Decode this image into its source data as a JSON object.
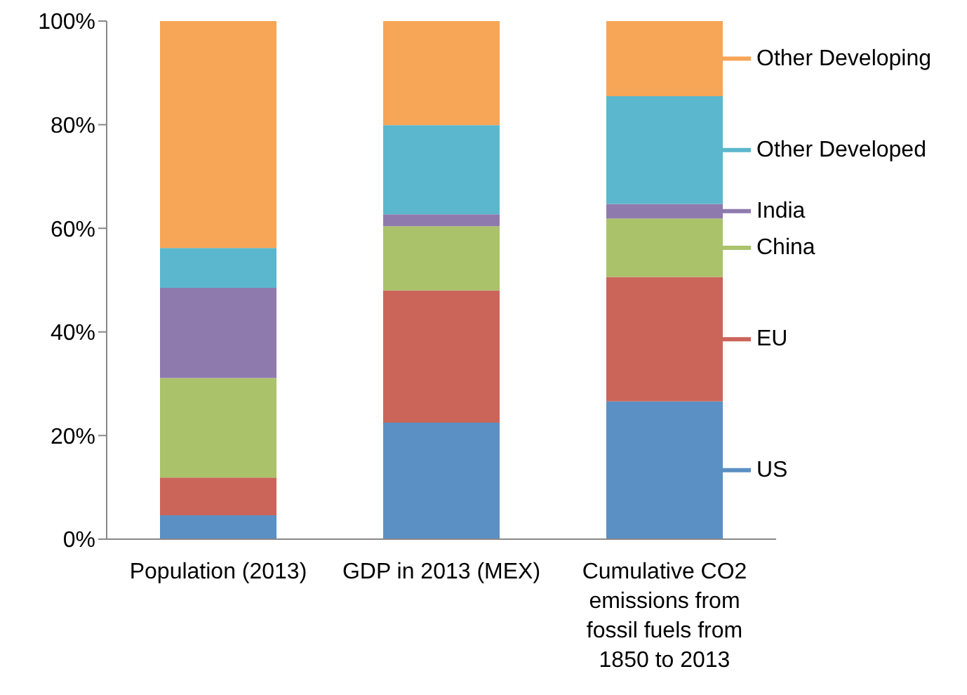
{
  "chart_data": {
    "type": "bar",
    "stacked": true,
    "categories": [
      "Population (2013)",
      "GDP in 2013 (MEX)",
      "Cumulative CO2 emissions from fossil fuels from 1850 to 2013"
    ],
    "series": [
      {
        "name": "US",
        "color": "#5b90c4",
        "values": [
          4.6,
          22.5,
          26.6
        ]
      },
      {
        "name": "EU",
        "color": "#cb655a",
        "values": [
          7.3,
          25.5,
          24.0
        ]
      },
      {
        "name": "China",
        "color": "#aac26a",
        "values": [
          19.2,
          12.4,
          11.3
        ]
      },
      {
        "name": "India",
        "color": "#8f7aae",
        "values": [
          17.4,
          2.3,
          2.8
        ]
      },
      {
        "name": "Other Developed",
        "color": "#5bb7cd",
        "values": [
          7.7,
          17.2,
          20.8
        ]
      },
      {
        "name": "Other Developing",
        "color": "#f7a556",
        "values": [
          43.8,
          20.1,
          14.5
        ]
      }
    ],
    "ylim": [
      0,
      100
    ],
    "yticks": [
      {
        "value": 0,
        "label": "0%"
      },
      {
        "value": 20,
        "label": "20%"
      },
      {
        "value": 40,
        "label": "40%"
      },
      {
        "value": 60,
        "label": "60%"
      },
      {
        "value": 80,
        "label": "80%"
      },
      {
        "value": 100,
        "label": "100%"
      }
    ],
    "grid": false,
    "legend": "right"
  }
}
